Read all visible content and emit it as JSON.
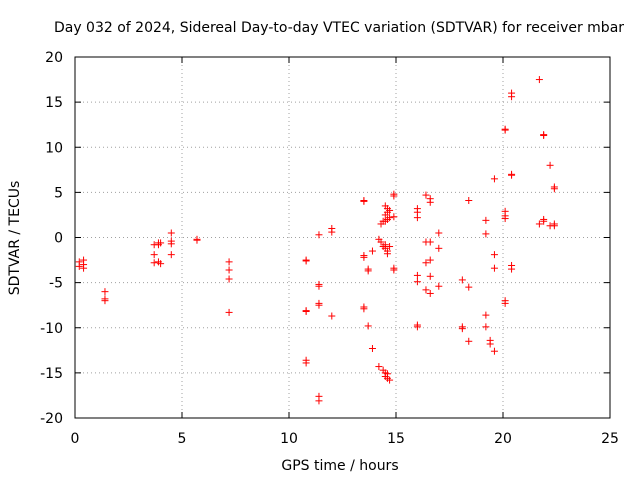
{
  "chart_data": {
    "type": "scatter",
    "title": "Day 032 of 2024, Sidereal Day-to-day VTEC variation (SDTVAR) for receiver mbar",
    "xlabel": "GPS time / hours",
    "ylabel": "SDTVAR / TECUs",
    "xlim": [
      0,
      25
    ],
    "ylim": [
      -20,
      20
    ],
    "xticks": [
      0,
      5,
      10,
      15,
      20,
      25
    ],
    "yticks": [
      -20,
      -15,
      -10,
      -5,
      0,
      5,
      10,
      15,
      20
    ],
    "grid": true,
    "marker": "+",
    "color": "#ff0000",
    "series": [
      {
        "name": "SDTVAR",
        "points": [
          [
            0.2,
            -2.7
          ],
          [
            0.2,
            -3.2
          ],
          [
            0.4,
            -2.5
          ],
          [
            0.4,
            -3.0
          ],
          [
            0.4,
            -3.4
          ],
          [
            1.4,
            -6.0
          ],
          [
            1.4,
            -6.8
          ],
          [
            1.4,
            -7.0
          ],
          [
            3.7,
            -0.8
          ],
          [
            3.7,
            -1.9
          ],
          [
            3.7,
            -2.8
          ],
          [
            3.9,
            -0.6
          ],
          [
            3.9,
            -0.8
          ],
          [
            3.9,
            -2.7
          ],
          [
            4.0,
            -0.6
          ],
          [
            4.0,
            -2.9
          ],
          [
            4.5,
            0.5
          ],
          [
            4.5,
            -0.4
          ],
          [
            4.5,
            -0.7
          ],
          [
            4.5,
            -1.9
          ],
          [
            5.7,
            -0.2
          ],
          [
            5.7,
            -0.3
          ],
          [
            7.2,
            -2.7
          ],
          [
            7.2,
            -3.6
          ],
          [
            7.2,
            -4.6
          ],
          [
            7.2,
            -8.3
          ],
          [
            10.8,
            -2.5
          ],
          [
            10.8,
            -2.6
          ],
          [
            10.8,
            -8.1
          ],
          [
            10.8,
            -8.2
          ],
          [
            10.8,
            -13.6
          ],
          [
            10.8,
            -13.9
          ],
          [
            11.4,
            0.3
          ],
          [
            11.4,
            -5.2
          ],
          [
            11.4,
            -5.4
          ],
          [
            11.4,
            -7.3
          ],
          [
            11.4,
            -7.5
          ],
          [
            11.4,
            -17.6
          ],
          [
            11.4,
            -18.1
          ],
          [
            12.0,
            0.6
          ],
          [
            12.0,
            1.0
          ],
          [
            12.0,
            -8.7
          ],
          [
            13.5,
            4.0
          ],
          [
            13.5,
            4.1
          ],
          [
            13.5,
            -2.0
          ],
          [
            13.5,
            -2.2
          ],
          [
            13.5,
            -7.7
          ],
          [
            13.5,
            -7.9
          ],
          [
            13.7,
            -3.5
          ],
          [
            13.7,
            -3.7
          ],
          [
            13.7,
            -9.8
          ],
          [
            13.9,
            -1.5
          ],
          [
            13.9,
            -12.3
          ],
          [
            14.2,
            -0.2
          ],
          [
            14.2,
            -14.3
          ],
          [
            14.3,
            1.5
          ],
          [
            14.3,
            -0.5
          ],
          [
            14.4,
            1.8
          ],
          [
            14.4,
            -1.0
          ],
          [
            14.4,
            -14.7
          ],
          [
            14.5,
            3.5
          ],
          [
            14.5,
            2.5
          ],
          [
            14.5,
            1.8
          ],
          [
            14.5,
            -0.8
          ],
          [
            14.5,
            -1.2
          ],
          [
            14.5,
            -15.0
          ],
          [
            14.5,
            -15.4
          ],
          [
            14.6,
            3.2
          ],
          [
            14.6,
            2.8
          ],
          [
            14.6,
            2.0
          ],
          [
            14.6,
            -1.5
          ],
          [
            14.6,
            -1.8
          ],
          [
            14.6,
            -15.1
          ],
          [
            14.6,
            -15.6
          ],
          [
            14.7,
            3.0
          ],
          [
            14.7,
            2.2
          ],
          [
            14.7,
            -1.0
          ],
          [
            14.7,
            -15.8
          ],
          [
            14.9,
            4.6
          ],
          [
            14.9,
            4.8
          ],
          [
            14.9,
            2.3
          ],
          [
            14.9,
            -3.4
          ],
          [
            14.9,
            -3.6
          ],
          [
            16.0,
            3.2
          ],
          [
            16.0,
            2.8
          ],
          [
            16.0,
            2.2
          ],
          [
            16.0,
            -4.2
          ],
          [
            16.0,
            -4.9
          ],
          [
            16.0,
            -9.7
          ],
          [
            16.0,
            -9.9
          ],
          [
            16.4,
            4.7
          ],
          [
            16.4,
            -0.5
          ],
          [
            16.4,
            -2.8
          ],
          [
            16.4,
            -5.8
          ],
          [
            16.6,
            4.3
          ],
          [
            16.6,
            3.9
          ],
          [
            16.6,
            -0.5
          ],
          [
            16.6,
            -2.5
          ],
          [
            16.6,
            -4.3
          ],
          [
            16.6,
            -6.2
          ],
          [
            17.0,
            0.5
          ],
          [
            17.0,
            -1.2
          ],
          [
            17.0,
            -5.4
          ],
          [
            18.1,
            -4.7
          ],
          [
            18.1,
            -9.9
          ],
          [
            18.1,
            -10.1
          ],
          [
            18.4,
            4.1
          ],
          [
            18.4,
            -5.5
          ],
          [
            18.4,
            -11.5
          ],
          [
            19.2,
            1.9
          ],
          [
            19.2,
            0.4
          ],
          [
            19.2,
            -8.6
          ],
          [
            19.2,
            -9.9
          ],
          [
            19.4,
            -11.4
          ],
          [
            19.4,
            -11.8
          ],
          [
            19.6,
            6.5
          ],
          [
            19.6,
            -1.9
          ],
          [
            19.6,
            -3.4
          ],
          [
            19.6,
            -12.6
          ],
          [
            20.1,
            12.0
          ],
          [
            20.1,
            11.9
          ],
          [
            20.1,
            2.9
          ],
          [
            20.1,
            2.4
          ],
          [
            20.1,
            2.1
          ],
          [
            20.1,
            -7.0
          ],
          [
            20.1,
            -7.3
          ],
          [
            20.4,
            16.0
          ],
          [
            20.4,
            15.6
          ],
          [
            20.4,
            7.0
          ],
          [
            20.4,
            6.9
          ],
          [
            20.4,
            -3.1
          ],
          [
            20.4,
            -3.5
          ],
          [
            21.7,
            17.5
          ],
          [
            21.7,
            1.5
          ],
          [
            21.9,
            11.4
          ],
          [
            21.9,
            11.3
          ],
          [
            21.9,
            2.0
          ],
          [
            21.9,
            1.8
          ],
          [
            22.2,
            8.0
          ],
          [
            22.2,
            1.3
          ],
          [
            22.4,
            5.6
          ],
          [
            22.4,
            5.4
          ],
          [
            22.4,
            1.5
          ],
          [
            22.4,
            1.3
          ]
        ]
      }
    ]
  }
}
